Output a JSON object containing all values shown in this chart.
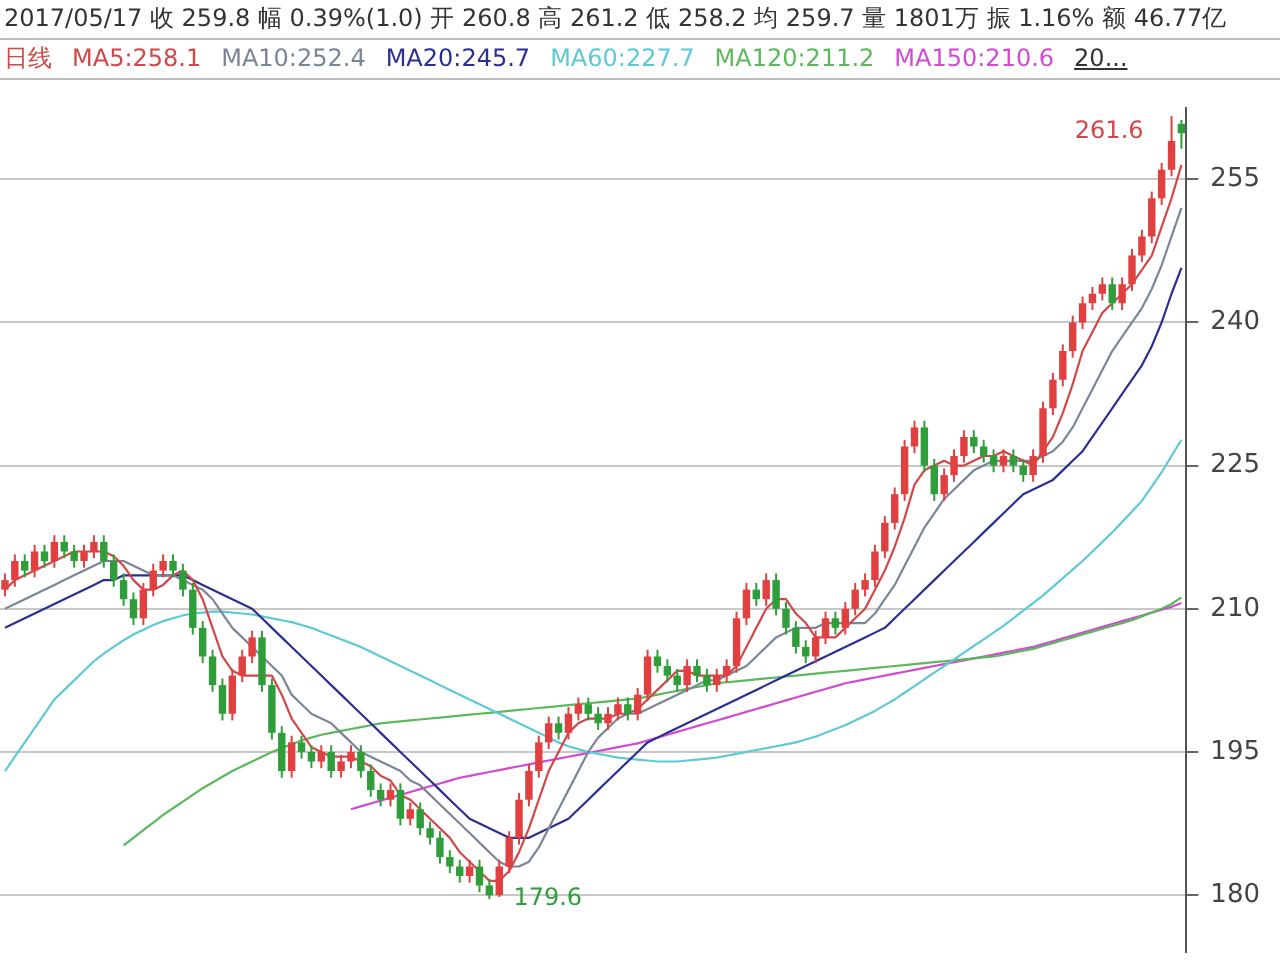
{
  "chart_data": {
    "type": "candlestick",
    "title": "2017/05/17 收 259.8 幅 0.39%(1.0) 开 260.8 高 261.2 低 258.2 均 259.7 量 1801万 振 1.16% 额 46.77亿",
    "subtitle": "日线",
    "categories": [
      null,
      null,
      null,
      null,
      null,
      null,
      null,
      null,
      null,
      null,
      null,
      null,
      null,
      null,
      null,
      null,
      null,
      null,
      null,
      null,
      null,
      null,
      null,
      null,
      null,
      null,
      null,
      null,
      null,
      null,
      null,
      null,
      null,
      null,
      null,
      null,
      null,
      null,
      null,
      null,
      null,
      null,
      null,
      null,
      null,
      null,
      null,
      null,
      null,
      null,
      null,
      null,
      null,
      null,
      null,
      null,
      null,
      null,
      null,
      null,
      null,
      null,
      null,
      null,
      null,
      null,
      null,
      null,
      null,
      null,
      null,
      null,
      null,
      null,
      null,
      null,
      null,
      null,
      null,
      null,
      null,
      null,
      null,
      null,
      null,
      null,
      null,
      null,
      null,
      null,
      null,
      null,
      null,
      null,
      null,
      null,
      null,
      null,
      null,
      null,
      null,
      null,
      null,
      null,
      null,
      null,
      null,
      null,
      null,
      null,
      null,
      null,
      null,
      null,
      null,
      null,
      null,
      null,
      null,
      null
    ],
    "ohlc": [
      [
        212,
        213.7,
        211.3,
        213
      ],
      [
        213,
        215.7,
        212.3,
        215
      ],
      [
        215,
        215.7,
        213.3,
        214
      ],
      [
        214,
        216.7,
        213.3,
        216
      ],
      [
        216,
        216.7,
        214.3,
        215
      ],
      [
        215,
        217.7,
        214.3,
        217
      ],
      [
        217,
        217.7,
        215.3,
        216
      ],
      [
        216,
        216.7,
        214.3,
        215
      ],
      [
        215,
        216.7,
        214.3,
        216
      ],
      [
        216,
        217.7,
        215.3,
        217
      ],
      [
        217,
        217.7,
        214.3,
        215
      ],
      [
        215,
        215.7,
        212.3,
        213
      ],
      [
        213,
        213.7,
        210.3,
        211
      ],
      [
        211,
        211.7,
        208.3,
        209
      ],
      [
        209,
        212.7,
        208.3,
        212
      ],
      [
        212,
        214.7,
        211.3,
        214
      ],
      [
        214,
        215.7,
        213.3,
        215
      ],
      [
        215,
        215.7,
        213.3,
        214
      ],
      [
        214,
        214.7,
        211.3,
        212
      ],
      [
        212,
        212.7,
        207.3,
        208
      ],
      [
        208,
        208.7,
        204.3,
        205
      ],
      [
        205,
        205.7,
        201.3,
        202
      ],
      [
        202,
        202.7,
        198.3,
        199
      ],
      [
        199,
        203.7,
        198.3,
        203
      ],
      [
        203,
        205.7,
        202.3,
        205
      ],
      [
        205,
        207.7,
        204.3,
        207
      ],
      [
        207,
        207.7,
        201.3,
        202
      ],
      [
        202,
        202.7,
        196.3,
        197
      ],
      [
        197,
        197.7,
        192.3,
        193
      ],
      [
        193,
        196.7,
        192.3,
        196
      ],
      [
        196,
        196.7,
        194.3,
        195
      ],
      [
        195,
        195.7,
        193.3,
        194
      ],
      [
        194,
        195.7,
        193.3,
        195
      ],
      [
        195,
        195.7,
        192.3,
        193
      ],
      [
        193,
        194.7,
        192.3,
        194
      ],
      [
        194,
        195.7,
        193.3,
        195
      ],
      [
        195,
        195.7,
        192.3,
        193
      ],
      [
        193,
        193.7,
        190.3,
        191
      ],
      [
        191,
        191.7,
        189.3,
        190
      ],
      [
        190,
        191.7,
        189.3,
        191
      ],
      [
        191,
        191.7,
        187.3,
        188
      ],
      [
        188,
        189.7,
        187.3,
        189
      ],
      [
        189,
        189.7,
        186.3,
        187
      ],
      [
        187,
        187.7,
        185.3,
        186
      ],
      [
        186,
        186.7,
        183.3,
        184
      ],
      [
        184,
        184.7,
        182.3,
        183
      ],
      [
        183,
        183.7,
        181.3,
        182
      ],
      [
        182,
        183.7,
        181.3,
        183
      ],
      [
        183,
        183.7,
        180.3,
        181
      ],
      [
        181,
        181.7,
        179.6,
        180
      ],
      [
        180,
        183.7,
        179.8,
        183
      ],
      [
        183,
        186.7,
        182.3,
        186
      ],
      [
        186,
        190.7,
        185.3,
        190
      ],
      [
        190,
        193.7,
        189.3,
        193
      ],
      [
        193,
        196.7,
        192.3,
        196
      ],
      [
        196,
        198.7,
        195.3,
        198
      ],
      [
        198,
        198.7,
        196.3,
        197
      ],
      [
        197,
        199.7,
        196.3,
        199
      ],
      [
        199,
        200.7,
        198.3,
        200
      ],
      [
        200,
        200.7,
        198.3,
        199
      ],
      [
        199,
        199.7,
        197.3,
        198
      ],
      [
        198,
        199.7,
        197.3,
        199
      ],
      [
        199,
        200.7,
        198.3,
        200
      ],
      [
        200,
        200.7,
        198.3,
        199
      ],
      [
        199,
        201.7,
        198.3,
        201
      ],
      [
        201,
        205.7,
        200.3,
        205
      ],
      [
        205,
        205.7,
        203.3,
        204
      ],
      [
        204,
        204.7,
        202.3,
        203
      ],
      [
        203,
        203.7,
        201.3,
        202
      ],
      [
        202,
        204.7,
        201.3,
        204
      ],
      [
        204,
        204.7,
        202.3,
        203
      ],
      [
        203,
        203.7,
        201.3,
        202
      ],
      [
        202,
        203.7,
        201.3,
        203
      ],
      [
        203,
        204.7,
        202.3,
        204
      ],
      [
        204,
        209.7,
        203.3,
        209
      ],
      [
        209,
        212.7,
        208.3,
        212
      ],
      [
        212,
        212.7,
        210.3,
        211
      ],
      [
        211,
        213.7,
        210.3,
        213
      ],
      [
        213,
        213.7,
        209.3,
        210
      ],
      [
        210,
        210.7,
        207.3,
        208
      ],
      [
        208,
        208.7,
        205.3,
        206
      ],
      [
        206,
        206.7,
        204.3,
        205
      ],
      [
        205,
        207.7,
        204.3,
        207
      ],
      [
        207,
        209.7,
        206.3,
        209
      ],
      [
        209,
        209.7,
        207.3,
        208
      ],
      [
        208,
        210.7,
        207.3,
        210
      ],
      [
        210,
        212.7,
        209.3,
        212
      ],
      [
        212,
        213.7,
        211.3,
        213
      ],
      [
        213,
        216.7,
        212.3,
        216
      ],
      [
        216,
        219.7,
        215.3,
        219
      ],
      [
        219,
        222.7,
        218.3,
        222
      ],
      [
        222,
        227.7,
        221.3,
        227
      ],
      [
        227,
        229.7,
        226.3,
        229
      ],
      [
        229,
        229.7,
        224.3,
        225
      ],
      [
        225,
        225.7,
        221.3,
        222
      ],
      [
        222,
        224.7,
        221.3,
        224
      ],
      [
        224,
        226.7,
        223.3,
        226
      ],
      [
        226,
        228.7,
        225.3,
        228
      ],
      [
        228,
        228.7,
        226.3,
        227
      ],
      [
        227,
        227.7,
        225.3,
        226
      ],
      [
        226,
        226.7,
        224.3,
        225
      ],
      [
        225,
        226.7,
        224.3,
        226
      ],
      [
        226,
        226.7,
        224.3,
        225
      ],
      [
        225,
        225.7,
        223.3,
        224
      ],
      [
        224,
        226.7,
        223.3,
        226
      ],
      [
        226,
        231.7,
        225.3,
        231
      ],
      [
        231,
        234.7,
        230.3,
        234
      ],
      [
        234,
        237.7,
        233.3,
        237
      ],
      [
        237,
        240.7,
        236.3,
        240
      ],
      [
        240,
        242.7,
        239.3,
        242
      ],
      [
        242,
        243.7,
        241.3,
        243
      ],
      [
        243,
        244.7,
        242.3,
        244
      ],
      [
        244,
        244.7,
        241.3,
        242
      ],
      [
        242,
        244.7,
        241.3,
        244
      ],
      [
        244,
        247.7,
        243.3,
        247
      ],
      [
        247,
        249.7,
        246.3,
        249
      ],
      [
        249,
        253.7,
        248.3,
        253
      ],
      [
        253,
        256.7,
        252.3,
        256
      ],
      [
        256,
        261.6,
        255.3,
        259
      ],
      [
        260.8,
        261.2,
        258.2,
        259.8
      ]
    ],
    "colors": [
      "#e04040",
      "#e04040",
      "#2f9e3a",
      "#e04040",
      "#2f9e3a",
      "#e04040",
      "#2f9e3a",
      "#2f9e3a",
      "#e04040",
      "#e04040",
      "#2f9e3a",
      "#2f9e3a",
      "#2f9e3a",
      "#2f9e3a",
      "#e04040",
      "#e04040",
      "#e04040",
      "#2f9e3a",
      "#2f9e3a",
      "#2f9e3a",
      "#2f9e3a",
      "#2f9e3a",
      "#2f9e3a",
      "#e04040",
      "#e04040",
      "#e04040",
      "#2f9e3a",
      "#2f9e3a",
      "#2f9e3a",
      "#e04040",
      "#2f9e3a",
      "#2f9e3a",
      "#e04040",
      "#2f9e3a",
      "#e04040",
      "#e04040",
      "#2f9e3a",
      "#2f9e3a",
      "#2f9e3a",
      "#e04040",
      "#2f9e3a",
      "#e04040",
      "#2f9e3a",
      "#2f9e3a",
      "#2f9e3a",
      "#2f9e3a",
      "#2f9e3a",
      "#e04040",
      "#2f9e3a",
      "#2f9e3a",
      "#e04040",
      "#e04040",
      "#e04040",
      "#e04040",
      "#e04040",
      "#e04040",
      "#2f9e3a",
      "#e04040",
      "#e04040",
      "#2f9e3a",
      "#2f9e3a",
      "#e04040",
      "#e04040",
      "#2f9e3a",
      "#e04040",
      "#e04040",
      "#2f9e3a",
      "#2f9e3a",
      "#2f9e3a",
      "#e04040",
      "#2f9e3a",
      "#2f9e3a",
      "#e04040",
      "#e04040",
      "#e04040",
      "#e04040",
      "#2f9e3a",
      "#e04040",
      "#2f9e3a",
      "#2f9e3a",
      "#2f9e3a",
      "#2f9e3a",
      "#e04040",
      "#e04040",
      "#2f9e3a",
      "#e04040",
      "#e04040",
      "#e04040",
      "#e04040",
      "#e04040",
      "#e04040",
      "#e04040",
      "#e04040",
      "#2f9e3a",
      "#2f9e3a",
      "#e04040",
      "#e04040",
      "#e04040",
      "#2f9e3a",
      "#2f9e3a",
      "#2f9e3a",
      "#e04040",
      "#2f9e3a",
      "#2f9e3a",
      "#e04040",
      "#e04040",
      "#e04040",
      "#e04040",
      "#e04040",
      "#e04040",
      "#e04040",
      "#e04040",
      "#2f9e3a",
      "#e04040",
      "#e04040",
      "#e04040",
      "#e04040",
      "#e04040",
      "#e04040",
      "#2f9e3a"
    ],
    "series": [
      {
        "name": "MA5:258.1",
        "type": "line",
        "color": "#d04848",
        "values": [
          212,
          213,
          213.5,
          214,
          214.5,
          215,
          215.5,
          216,
          216,
          216,
          216,
          215.5,
          214.5,
          213,
          212,
          212,
          212.5,
          213.5,
          214,
          213,
          211,
          208,
          205,
          203.5,
          203,
          203,
          203,
          203,
          201,
          198.5,
          197,
          195.5,
          195,
          194.5,
          194.5,
          194.5,
          194,
          193.5,
          192.5,
          192,
          190.5,
          190,
          189,
          188,
          187,
          186,
          184.5,
          183.5,
          182.5,
          181.5,
          181.5,
          182.5,
          184.5,
          187,
          190,
          193,
          195,
          197,
          198,
          198.5,
          198.5,
          198.5,
          199,
          199,
          199.5,
          200.5,
          201.5,
          202.5,
          203.5,
          203.5,
          203,
          203,
          203,
          203,
          204,
          206,
          208,
          210,
          211,
          211,
          209.5,
          208.5,
          207,
          207,
          207,
          208,
          209,
          210,
          212,
          214,
          216.5,
          219.5,
          223,
          224.5,
          225,
          225.5,
          225,
          225,
          225.5,
          226,
          226,
          226.5,
          226,
          225.5,
          225,
          226.5,
          228,
          230.5,
          233.5,
          237,
          239,
          241,
          242,
          243,
          244,
          245.5,
          247,
          250,
          253,
          256.5
        ]
      },
      {
        "name": "MA10:252.4",
        "type": "line",
        "color": "#7a8696",
        "values": [
          210,
          210.5,
          211,
          211.5,
          212,
          212.5,
          213,
          213.5,
          214,
          214.5,
          215,
          215,
          215,
          214.5,
          214,
          213.5,
          213.5,
          213.5,
          213,
          212.5,
          212,
          211,
          209.5,
          208,
          207,
          206,
          205,
          204,
          203,
          201,
          200,
          199,
          198.5,
          198,
          197,
          196,
          195,
          194.5,
          194,
          193.5,
          193,
          192,
          191.5,
          190.5,
          189.5,
          188.5,
          187.5,
          186.5,
          185.5,
          184.5,
          183.5,
          183,
          183,
          183.5,
          185,
          187,
          189,
          191,
          193,
          195,
          196.5,
          197.5,
          198.5,
          199,
          199,
          199.5,
          200,
          200.5,
          201,
          201.5,
          202,
          202.5,
          202.5,
          203,
          203.5,
          204,
          205,
          206,
          207,
          207.5,
          208,
          208,
          208,
          208.5,
          208.5,
          208.5,
          208.5,
          208.5,
          209.5,
          211,
          212.5,
          214.5,
          216.5,
          218.5,
          220,
          221.5,
          222.5,
          223.5,
          224.5,
          225,
          225.5,
          225.5,
          225.5,
          225.5,
          225.5,
          226,
          226.5,
          227.5,
          229,
          231,
          233,
          235,
          237,
          238.5,
          240,
          241.5,
          243.5,
          246,
          249,
          252
        ]
      },
      {
        "name": "MA20:245.7",
        "type": "line",
        "color": "#2b2f8f",
        "values": [
          208,
          208.5,
          209,
          209.5,
          210,
          210.5,
          211,
          211.5,
          212,
          212.5,
          213,
          213,
          213.5,
          213.5,
          213.5,
          213.5,
          213.5,
          213.5,
          213.5,
          213,
          212.5,
          212,
          211.5,
          211,
          210.5,
          210,
          209,
          208,
          207,
          206,
          205,
          204,
          203,
          202,
          201,
          200,
          199,
          198,
          197,
          196,
          195,
          194,
          193,
          192,
          191,
          190,
          189,
          188,
          187.5,
          187,
          186.5,
          186,
          186,
          186,
          186.5,
          187,
          187.5,
          188,
          189,
          190,
          191,
          192,
          193,
          194,
          195,
          196,
          196.5,
          197,
          197.5,
          198,
          198.5,
          199,
          199.5,
          200,
          200.5,
          201,
          201.5,
          202,
          202.5,
          203,
          203.5,
          204,
          204.5,
          205,
          205.5,
          206,
          206.5,
          207,
          207.5,
          208,
          209,
          210,
          211,
          212,
          213,
          214,
          215,
          216,
          217,
          218,
          219,
          220,
          221,
          222,
          222.5,
          223,
          223.5,
          224.5,
          225.5,
          226.5,
          228,
          229.5,
          231,
          232.5,
          234,
          235.5,
          237.5,
          240,
          243,
          245.7
        ]
      },
      {
        "name": "MA60:227.7",
        "type": "line",
        "color": "#5ec9d6",
        "values": [
          193,
          194.5,
          196,
          197.5,
          199,
          200.5,
          201.5,
          202.5,
          203.5,
          204.5,
          205.3,
          206,
          206.7,
          207.3,
          207.8,
          208.3,
          208.7,
          209,
          209.3,
          209.5,
          209.6,
          209.7,
          209.7,
          209.6,
          209.5,
          209.4,
          209.2,
          209,
          208.8,
          208.6,
          208.3,
          208,
          207.6,
          207.2,
          206.8,
          206.4,
          206,
          205.5,
          205,
          204.5,
          204,
          203.5,
          203,
          202.5,
          202,
          201.5,
          201,
          200.5,
          200,
          199.5,
          199,
          198.5,
          198,
          197.5,
          197,
          196.5,
          196,
          195.6,
          195.3,
          195,
          194.8,
          194.6,
          194.4,
          194.3,
          194.2,
          194.1,
          194,
          194,
          194,
          194.1,
          194.2,
          194.3,
          194.4,
          194.6,
          194.8,
          195,
          195.2,
          195.4,
          195.6,
          195.8,
          196,
          196.3,
          196.6,
          197,
          197.4,
          197.8,
          198.3,
          198.8,
          199.3,
          199.9,
          200.5,
          201.2,
          201.9,
          202.6,
          203.3,
          204,
          204.7,
          205.4,
          206.1,
          206.8,
          207.5,
          208.2,
          209,
          209.8,
          210.6,
          211.4,
          212.3,
          213.2,
          214.1,
          215,
          216,
          217,
          218,
          219.1,
          220.2,
          221.3,
          222.8,
          224.3,
          226,
          227.7
        ]
      },
      {
        "name": "MA120:211.2",
        "type": "line",
        "color": "#5cb85c",
        "values": [
          null,
          null,
          null,
          null,
          null,
          null,
          null,
          null,
          null,
          null,
          null,
          null,
          185.2,
          186,
          186.8,
          187.6,
          188.4,
          189.1,
          189.8,
          190.5,
          191.2,
          191.8,
          192.4,
          193,
          193.5,
          194,
          194.5,
          195,
          195.4,
          195.8,
          196.2,
          196.5,
          196.8,
          197,
          197.2,
          197.4,
          197.6,
          197.8,
          198,
          198.1,
          198.2,
          198.3,
          198.4,
          198.5,
          198.6,
          198.7,
          198.8,
          198.9,
          199,
          199.1,
          199.2,
          199.3,
          199.4,
          199.5,
          199.6,
          199.7,
          199.8,
          199.9,
          200,
          200.1,
          200.2,
          200.3,
          200.4,
          200.5,
          200.6,
          200.8,
          201,
          201.2,
          201.4,
          201.6,
          201.8,
          202,
          202.2,
          202.3,
          202.4,
          202.5,
          202.6,
          202.7,
          202.8,
          202.9,
          203,
          203.1,
          203.2,
          203.3,
          203.4,
          203.5,
          203.6,
          203.7,
          203.8,
          203.9,
          204,
          204.1,
          204.2,
          204.3,
          204.4,
          204.5,
          204.6,
          204.7,
          204.8,
          204.9,
          205,
          205.2,
          205.4,
          205.6,
          205.8,
          206.1,
          206.4,
          206.7,
          207,
          207.3,
          207.6,
          207.9,
          208.2,
          208.5,
          208.8,
          209.2,
          209.6,
          210,
          210.5,
          211.2
        ]
      },
      {
        "name": "MA150:210.6",
        "type": "line",
        "color": "#d24ad2",
        "values": [
          null,
          null,
          null,
          null,
          null,
          null,
          null,
          null,
          null,
          null,
          null,
          null,
          null,
          null,
          null,
          null,
          null,
          null,
          null,
          null,
          null,
          null,
          null,
          null,
          null,
          null,
          null,
          null,
          null,
          null,
          null,
          null,
          null,
          null,
          null,
          189,
          189.3,
          189.6,
          189.9,
          190.2,
          190.5,
          190.8,
          191.1,
          191.4,
          191.7,
          192,
          192.3,
          192.5,
          192.7,
          192.9,
          193.1,
          193.3,
          193.5,
          193.7,
          193.9,
          194.1,
          194.3,
          194.5,
          194.7,
          194.9,
          195.1,
          195.3,
          195.5,
          195.7,
          195.9,
          196.2,
          196.5,
          196.8,
          197.1,
          197.4,
          197.7,
          198,
          198.3,
          198.6,
          198.9,
          199.2,
          199.5,
          199.8,
          200.1,
          200.4,
          200.7,
          201,
          201.3,
          201.6,
          201.9,
          202.2,
          202.4,
          202.6,
          202.8,
          203,
          203.2,
          203.4,
          203.6,
          203.8,
          204,
          204.2,
          204.4,
          204.6,
          204.8,
          205,
          205.2,
          205.4,
          205.6,
          205.8,
          206,
          206.3,
          206.6,
          206.9,
          207.2,
          207.5,
          207.8,
          208.1,
          208.4,
          208.7,
          209,
          209.3,
          209.6,
          209.9,
          210.2,
          210.6
        ]
      }
    ],
    "ylim": [
      174,
      262.5
    ],
    "yticks": [
      180,
      195,
      210,
      225,
      240,
      255
    ],
    "grid": "y",
    "legend": "top",
    "annotations": [
      "261.6",
      "179.6",
      "20..."
    ]
  }
}
